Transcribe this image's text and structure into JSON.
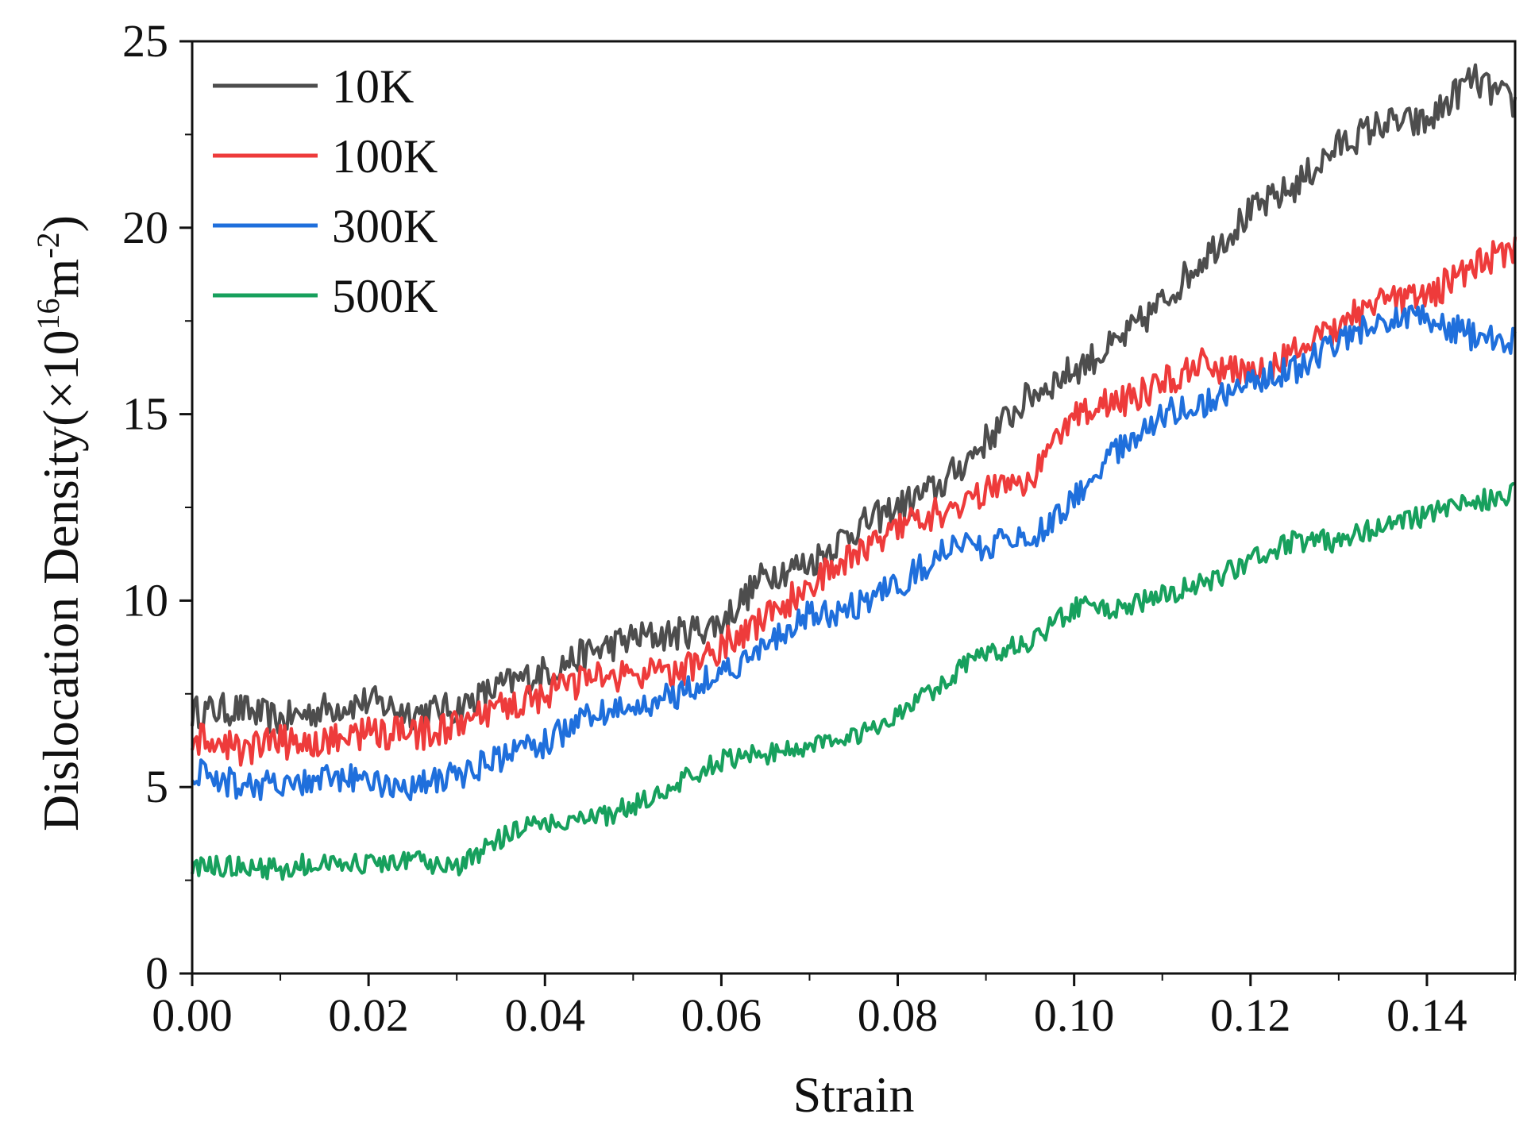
{
  "chart_data": {
    "type": "line",
    "xlabel": "Strain",
    "ylabel": {
      "main": "Dislocation Density(×10",
      "exp1": "16",
      "unit": "m",
      "exp2": "-2",
      "close": ")"
    },
    "xlim": [
      0,
      0.15
    ],
    "ylim": [
      0,
      25
    ],
    "x_ticks": [
      0.0,
      0.02,
      0.04,
      0.06,
      0.08,
      0.1,
      0.12,
      0.14
    ],
    "x_tick_labels": [
      "0.00",
      "0.02",
      "0.04",
      "0.06",
      "0.08",
      "0.10",
      "0.12",
      "0.14"
    ],
    "y_ticks": [
      0,
      5,
      10,
      15,
      20,
      25
    ],
    "y_tick_labels": [
      "0",
      "5",
      "10",
      "15",
      "20",
      "25"
    ],
    "x_minor_step": 0.01,
    "y_minor_step": 2.5,
    "grid": false,
    "legend_position": "top-left",
    "series": [
      {
        "name": "10K",
        "color": "#4d4d4d",
        "x": [
          0,
          0.005,
          0.01,
          0.015,
          0.02,
          0.025,
          0.03,
          0.035,
          0.04,
          0.045,
          0.05,
          0.055,
          0.06,
          0.065,
          0.07,
          0.075,
          0.08,
          0.085,
          0.09,
          0.095,
          0.1,
          0.105,
          0.11,
          0.115,
          0.12,
          0.125,
          0.13,
          0.135,
          0.14,
          0.145,
          0.15
        ],
        "y": [
          7.0,
          7.1,
          6.8,
          7.1,
          7.3,
          7.0,
          7.1,
          7.7,
          8.1,
          8.6,
          9.0,
          9.1,
          9.4,
          10.7,
          11.0,
          11.9,
          12.5,
          13.1,
          14.3,
          15.5,
          16.2,
          16.9,
          18.0,
          19.3,
          20.4,
          21.1,
          22.2,
          22.8,
          22.8,
          24.0,
          23.3
        ]
      },
      {
        "name": "100K",
        "color": "#ee3b3b",
        "x": [
          0,
          0.005,
          0.01,
          0.015,
          0.02,
          0.025,
          0.03,
          0.035,
          0.04,
          0.045,
          0.05,
          0.055,
          0.06,
          0.065,
          0.07,
          0.075,
          0.08,
          0.085,
          0.09,
          0.095,
          0.1,
          0.105,
          0.11,
          0.115,
          0.12,
          0.125,
          0.13,
          0.135,
          0.14,
          0.145,
          0.15
        ],
        "y": [
          6.3,
          6.0,
          6.2,
          6.2,
          6.5,
          6.4,
          6.6,
          7.1,
          7.5,
          7.9,
          8.0,
          8.0,
          8.8,
          9.5,
          10.4,
          11.2,
          12.1,
          12.4,
          12.9,
          13.3,
          15.1,
          15.3,
          15.8,
          16.4,
          16.0,
          16.6,
          17.4,
          18.0,
          18.1,
          19.0,
          19.5
        ]
      },
      {
        "name": "300K",
        "color": "#1f6fdc",
        "x": [
          0,
          0.005,
          0.01,
          0.015,
          0.02,
          0.025,
          0.03,
          0.035,
          0.04,
          0.045,
          0.05,
          0.055,
          0.06,
          0.065,
          0.07,
          0.075,
          0.08,
          0.085,
          0.09,
          0.095,
          0.1,
          0.105,
          0.11,
          0.115,
          0.12,
          0.125,
          0.13,
          0.135,
          0.14,
          0.145,
          0.15
        ],
        "y": [
          5.4,
          5.1,
          5.0,
          5.2,
          5.2,
          5.0,
          5.3,
          5.8,
          6.2,
          6.9,
          7.1,
          7.5,
          8.1,
          8.7,
          9.6,
          9.8,
          10.4,
          11.3,
          11.5,
          11.6,
          12.8,
          14.0,
          15.0,
          15.3,
          15.9,
          16.2,
          16.9,
          17.5,
          17.6,
          17.1,
          16.9
        ]
      },
      {
        "name": "500K",
        "color": "#17a05d",
        "x": [
          0,
          0.005,
          0.01,
          0.015,
          0.02,
          0.025,
          0.03,
          0.035,
          0.04,
          0.045,
          0.05,
          0.055,
          0.06,
          0.065,
          0.07,
          0.075,
          0.08,
          0.085,
          0.09,
          0.095,
          0.1,
          0.105,
          0.11,
          0.115,
          0.12,
          0.125,
          0.13,
          0.135,
          0.14,
          0.145,
          0.15
        ],
        "y": [
          2.8,
          2.9,
          2.8,
          3.0,
          2.9,
          3.0,
          2.8,
          3.6,
          4.1,
          4.1,
          4.5,
          5.1,
          5.7,
          5.9,
          6.1,
          6.4,
          6.9,
          7.8,
          8.6,
          8.8,
          9.8,
          9.8,
          10.1,
          10.5,
          11.1,
          11.6,
          11.6,
          12.0,
          12.3,
          12.6,
          12.9
        ]
      }
    ]
  }
}
